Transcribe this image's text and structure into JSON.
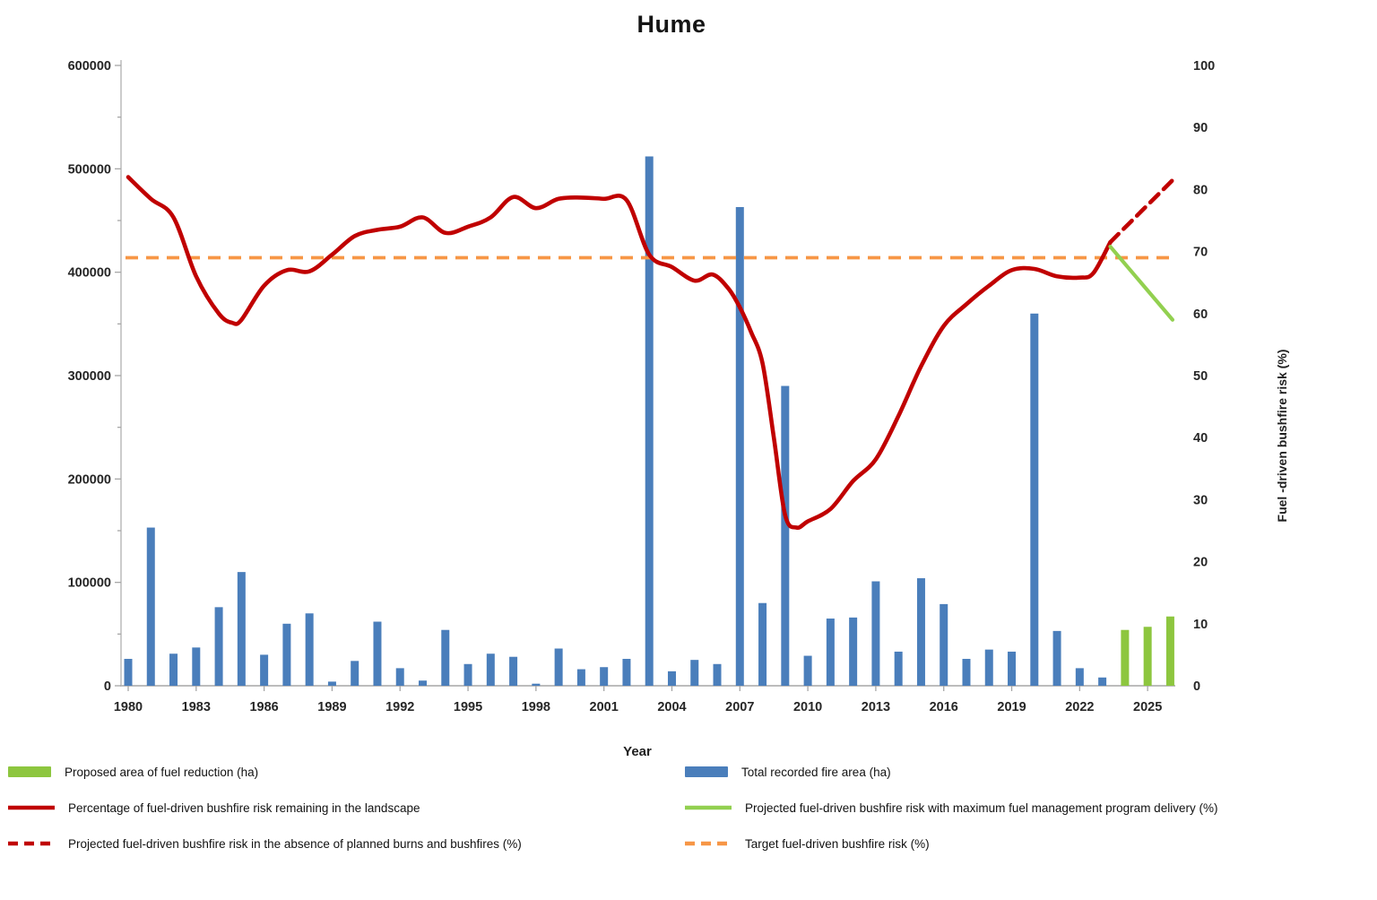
{
  "title": "Hume",
  "chart_data": {
    "type": "combo",
    "title": "Hume",
    "xlabel": "Year",
    "ylabel_right": "Fuel -driven bushfire risk (%)",
    "x_axis": {
      "ticks": [
        1980,
        1983,
        1986,
        1989,
        1992,
        1995,
        1998,
        2001,
        2004,
        2007,
        2010,
        2013,
        2016,
        2019,
        2022,
        2025
      ]
    },
    "left_axis": {
      "min": 0,
      "max": 600000,
      "ticks": [
        0,
        100000,
        200000,
        300000,
        400000,
        500000,
        600000
      ]
    },
    "right_axis": {
      "min": 0,
      "max": 100,
      "ticks": [
        0,
        10,
        20,
        30,
        40,
        50,
        60,
        70,
        80,
        90,
        100
      ]
    },
    "series": {
      "fire_area_bars": {
        "label": "Total recorded fire area (ha)",
        "type": "bar",
        "axis": "left",
        "color": "#4A7EBB",
        "start_year": 1980,
        "values": [
          26000,
          153000,
          31000,
          37000,
          76000,
          110000,
          30000,
          60000,
          70000,
          4000,
          24000,
          62000,
          17000,
          5000,
          54000,
          21000,
          31000,
          28000,
          2000,
          36000,
          16000,
          18000,
          26000,
          512000,
          14000,
          25000,
          21000,
          463000,
          80000,
          290000,
          29000,
          65000,
          66000,
          101000,
          33000,
          104000,
          79000,
          26000,
          35000,
          33000,
          360000,
          53000,
          17000,
          8000
        ]
      },
      "proposed_bars": {
        "label": "Proposed area of fuel reduction (ha)",
        "type": "bar",
        "axis": "left",
        "color": "#8DC63F",
        "start_year": 2024,
        "values": [
          54000,
          57000,
          67000
        ]
      },
      "risk_line": {
        "label": "Percentage of fuel-driven bushfire risk remaining in the landscape",
        "type": "line",
        "axis": "right",
        "color": "#C00000",
        "points": [
          [
            1980,
            82
          ],
          [
            1981,
            78.5
          ],
          [
            1982,
            75.5
          ],
          [
            1983,
            66
          ],
          [
            1984,
            60
          ],
          [
            1984.6,
            58.5
          ],
          [
            1985,
            59
          ],
          [
            1986,
            64.5
          ],
          [
            1987,
            67
          ],
          [
            1988,
            66.8
          ],
          [
            1989,
            69.5
          ],
          [
            1990,
            72.5
          ],
          [
            1991,
            73.5
          ],
          [
            1992,
            74
          ],
          [
            1993,
            75.5
          ],
          [
            1994,
            73
          ],
          [
            1995,
            74
          ],
          [
            1996,
            75.5
          ],
          [
            1997,
            78.8
          ],
          [
            1998,
            77
          ],
          [
            1999,
            78.5
          ],
          [
            2000,
            78.7
          ],
          [
            2001,
            78.5
          ],
          [
            2002,
            78.3
          ],
          [
            2003,
            69.5
          ],
          [
            2004,
            67.5
          ],
          [
            2005,
            65.3
          ],
          [
            2005.8,
            66.3
          ],
          [
            2006.5,
            64
          ],
          [
            2007,
            61
          ],
          [
            2007.5,
            57
          ],
          [
            2008,
            52
          ],
          [
            2008.5,
            40
          ],
          [
            2009,
            27.5
          ],
          [
            2009.5,
            25.5
          ],
          [
            2010,
            26.5
          ],
          [
            2011,
            28.5
          ],
          [
            2012,
            33
          ],
          [
            2013,
            36.5
          ],
          [
            2014,
            43.5
          ],
          [
            2015,
            51.5
          ],
          [
            2016,
            58
          ],
          [
            2017,
            61.5
          ],
          [
            2018,
            64.5
          ],
          [
            2019,
            67
          ],
          [
            2020,
            67.2
          ],
          [
            2021,
            66
          ],
          [
            2022,
            65.8
          ],
          [
            2022.6,
            66.5
          ],
          [
            2023.35,
            71.5
          ]
        ]
      },
      "projected_no_burns": {
        "label": "Projected fuel-driven bushfire risk in the absence of planned burns and bushfires (%)",
        "type": "dash",
        "axis": "right",
        "color": "#C00000",
        "points": [
          [
            2023.35,
            71.5
          ],
          [
            2026.1,
            81.5
          ]
        ]
      },
      "projected_max_delivery": {
        "label": "Projected fuel-driven bushfire risk with maximum fuel management program delivery  (%)",
        "type": "line",
        "axis": "right",
        "color": "#92D050",
        "points": [
          [
            2023.35,
            70.8
          ],
          [
            2026.1,
            59
          ]
        ]
      },
      "target_line": {
        "label": "Target fuel-driven bushfire risk (%)",
        "type": "dash",
        "axis": "right",
        "color": "#F79646",
        "value": 69
      }
    },
    "legend": [
      {
        "swatch": "bar",
        "color": "#8DC63F",
        "label": "Proposed area of fuel reduction (ha)",
        "col": 0,
        "row": 0
      },
      {
        "swatch": "bar",
        "color": "#4A7EBB",
        "label": "Total recorded fire area (ha)",
        "col": 1,
        "row": 0
      },
      {
        "swatch": "line",
        "color": "#C00000",
        "label": "Percentage of fuel-driven bushfire risk remaining in the landscape",
        "col": 0,
        "row": 1
      },
      {
        "swatch": "line",
        "color": "#92D050",
        "label": "Projected fuel-driven bushfire risk with maximum fuel management program delivery  (%)",
        "col": 1,
        "row": 1
      },
      {
        "swatch": "dash",
        "color": "#C00000",
        "label": "Projected fuel-driven bushfire risk in the absence of planned burns and bushfires (%)",
        "col": 0,
        "row": 2
      },
      {
        "swatch": "dash",
        "color": "#F79646",
        "label": "Target fuel-driven bushfire risk (%)",
        "col": 1,
        "row": 2
      }
    ]
  }
}
